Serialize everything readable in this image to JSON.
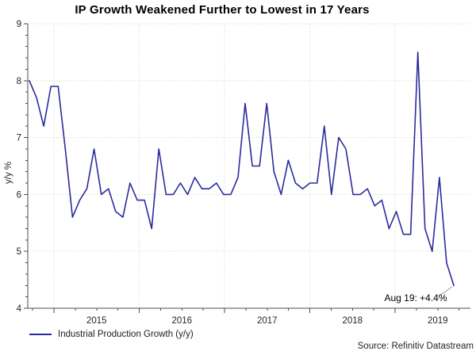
{
  "title": "IP Growth Weakened Further to Lowest in 17 Years",
  "source_label": "Source: Refinitiv Datastream",
  "colors": {
    "line": "#2b2b9e",
    "grid": "#d9d9ad",
    "axis": "#4d4d4d",
    "text": "#262626",
    "leader": "#9a9a9a"
  },
  "chart_data": {
    "type": "line",
    "title": "IP Growth Weakened Further to Lowest in 17 Years",
    "xlabel": "",
    "ylabel": "y/y %",
    "ylim": [
      4,
      9
    ],
    "yticks": [
      4,
      5,
      6,
      7,
      8,
      9
    ],
    "x_year_labels": [
      "2015",
      "2016",
      "2017",
      "2018",
      "2019"
    ],
    "grid": "dotted major gridlines, horizontal at 5-9 and vertical at year starts",
    "legend_position": "bottom-left",
    "annotation": {
      "text": "Aug 19: +4.4%",
      "month": "2019-08",
      "value": 4.4
    },
    "series": [
      {
        "name": "Industrial Production Growth (y/y)",
        "months": [
          "2014-09",
          "2014-10",
          "2014-11",
          "2014-12",
          "2015-01",
          "2015-02",
          "2015-03",
          "2015-04",
          "2015-05",
          "2015-06",
          "2015-07",
          "2015-08",
          "2015-09",
          "2015-10",
          "2015-11",
          "2015-12",
          "2016-01",
          "2016-02",
          "2016-03",
          "2016-04",
          "2016-05",
          "2016-06",
          "2016-07",
          "2016-08",
          "2016-09",
          "2016-10",
          "2016-11",
          "2016-12",
          "2017-01",
          "2017-02",
          "2017-03",
          "2017-04",
          "2017-05",
          "2017-06",
          "2017-07",
          "2017-08",
          "2017-09",
          "2017-10",
          "2017-11",
          "2017-12",
          "2018-01",
          "2018-02",
          "2018-03",
          "2018-04",
          "2018-05",
          "2018-06",
          "2018-07",
          "2018-08",
          "2018-09",
          "2018-10",
          "2018-11",
          "2018-12",
          "2019-01",
          "2019-02",
          "2019-03",
          "2019-04",
          "2019-05",
          "2019-06",
          "2019-07",
          "2019-08"
        ],
        "values": [
          8.0,
          7.7,
          7.2,
          7.9,
          7.9,
          6.8,
          5.6,
          5.9,
          6.1,
          6.8,
          6.0,
          6.1,
          5.7,
          5.6,
          6.2,
          5.9,
          5.9,
          5.4,
          6.8,
          6.0,
          6.0,
          6.2,
          6.0,
          6.3,
          6.1,
          6.1,
          6.2,
          6.0,
          6.0,
          6.3,
          7.6,
          6.5,
          6.5,
          7.6,
          6.4,
          6.0,
          6.6,
          6.2,
          6.1,
          6.2,
          6.2,
          7.2,
          6.0,
          7.0,
          6.8,
          6.0,
          6.0,
          6.1,
          5.8,
          5.9,
          5.4,
          5.7,
          5.3,
          5.3,
          8.5,
          5.4,
          5.0,
          6.3,
          4.8,
          4.4
        ]
      }
    ]
  }
}
